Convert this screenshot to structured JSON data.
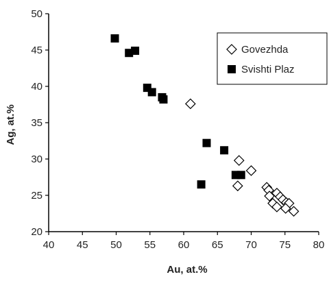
{
  "chart_data": {
    "type": "scatter",
    "title": "",
    "xlabel": "Au, at.%",
    "ylabel": "Ag, at.%",
    "xlim": [
      40,
      80
    ],
    "ylim": [
      20,
      50
    ],
    "xticks": [
      "40",
      "45",
      "50",
      "55",
      "60",
      "65",
      "70",
      "75",
      "80"
    ],
    "yticks": [
      "20",
      "25",
      "30",
      "35",
      "40",
      "45",
      "50"
    ],
    "grid": false,
    "legend_position": "top-right",
    "series": [
      {
        "name": "Govezhda",
        "marker": "open-diamond",
        "color": "#000000",
        "points": [
          {
            "x": 61.0,
            "y": 37.6
          },
          {
            "x": 68.2,
            "y": 29.8
          },
          {
            "x": 70.0,
            "y": 28.4
          },
          {
            "x": 68.0,
            "y": 26.3
          },
          {
            "x": 72.3,
            "y": 26.1
          },
          {
            "x": 72.6,
            "y": 25.7
          },
          {
            "x": 72.7,
            "y": 24.9
          },
          {
            "x": 73.8,
            "y": 25.3
          },
          {
            "x": 74.3,
            "y": 24.8
          },
          {
            "x": 74.7,
            "y": 24.4
          },
          {
            "x": 75.2,
            "y": 24.0
          },
          {
            "x": 75.6,
            "y": 23.9
          },
          {
            "x": 73.2,
            "y": 23.9
          },
          {
            "x": 73.8,
            "y": 23.4
          },
          {
            "x": 75.1,
            "y": 23.2
          },
          {
            "x": 76.3,
            "y": 22.8
          }
        ]
      },
      {
        "name": "Svishti Plaz",
        "marker": "filled-square",
        "color": "#000000",
        "points": [
          {
            "x": 49.8,
            "y": 46.6
          },
          {
            "x": 51.9,
            "y": 44.6
          },
          {
            "x": 52.8,
            "y": 44.9
          },
          {
            "x": 54.6,
            "y": 39.8
          },
          {
            "x": 55.3,
            "y": 39.2
          },
          {
            "x": 56.8,
            "y": 38.5
          },
          {
            "x": 57.0,
            "y": 38.2
          },
          {
            "x": 63.4,
            "y": 32.2
          },
          {
            "x": 66.0,
            "y": 31.2
          },
          {
            "x": 62.6,
            "y": 26.5
          },
          {
            "x": 67.7,
            "y": 27.8
          },
          {
            "x": 68.5,
            "y": 27.8
          }
        ]
      }
    ]
  }
}
